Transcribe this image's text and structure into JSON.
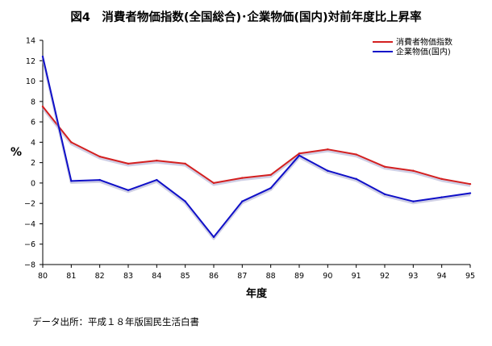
{
  "chart_data": {
    "type": "line",
    "title": "図4　消費者物価指数(全国総合)･企業物価(国内)対前年度比上昇率",
    "xlabel": "年度",
    "ylabel": "%",
    "x": [
      "80",
      "81",
      "82",
      "83",
      "84",
      "85",
      "86",
      "87",
      "88",
      "89",
      "90",
      "91",
      "92",
      "93",
      "94",
      "95"
    ],
    "ylim": [
      -8,
      14
    ],
    "yticks": [
      "14",
      "12",
      "10",
      "8",
      "6",
      "4",
      "2",
      "0",
      "−2",
      "−4",
      "−6",
      "−8"
    ],
    "legend_position": "top-right",
    "series": [
      {
        "name": "消費者物価指数",
        "color": "#d42020",
        "values": [
          7.5,
          4.0,
          2.6,
          1.9,
          2.2,
          1.9,
          0.0,
          0.5,
          0.8,
          2.9,
          3.3,
          2.8,
          1.6,
          1.2,
          0.4,
          -0.1
        ]
      },
      {
        "name": "企業物価(国内)",
        "color": "#1010c8",
        "values": [
          12.4,
          0.2,
          0.3,
          -0.7,
          0.3,
          -1.8,
          -5.3,
          -1.8,
          -0.5,
          2.7,
          1.2,
          0.4,
          -1.1,
          -1.8,
          -1.4,
          -1.0
        ]
      }
    ],
    "source": "データ出所：平成１８年版国民生活白書"
  }
}
